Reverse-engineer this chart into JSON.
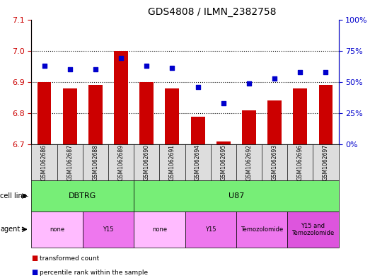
{
  "title": "GDS4808 / ILMN_2382758",
  "samples": [
    "GSM1062686",
    "GSM1062687",
    "GSM1062688",
    "GSM1062689",
    "GSM1062690",
    "GSM1062691",
    "GSM1062694",
    "GSM1062695",
    "GSM1062692",
    "GSM1062693",
    "GSM1062696",
    "GSM1062697"
  ],
  "bar_values": [
    6.9,
    6.88,
    6.89,
    7.0,
    6.9,
    6.88,
    6.79,
    6.71,
    6.81,
    6.84,
    6.88,
    6.89
  ],
  "dot_values": [
    63,
    60,
    60,
    69,
    63,
    61,
    46,
    33,
    49,
    53,
    58,
    58
  ],
  "ylim_left": [
    6.7,
    7.1
  ],
  "ylim_right": [
    0,
    100
  ],
  "yticks_left": [
    6.7,
    6.8,
    6.9,
    7.0,
    7.1
  ],
  "yticks_right": [
    0,
    25,
    50,
    75,
    100
  ],
  "bar_color": "#cc0000",
  "dot_color": "#0000cc",
  "bar_baseline": 6.7,
  "cell_line_labels": [
    "DBTRG",
    "U87"
  ],
  "cell_line_spans": [
    [
      0,
      3
    ],
    [
      4,
      11
    ]
  ],
  "cell_line_color": "#77ee77",
  "agent_groups": [
    {
      "label": "none",
      "start": 0,
      "end": 1,
      "color": "#ffbbff"
    },
    {
      "label": "Y15",
      "start": 2,
      "end": 3,
      "color": "#ee77ee"
    },
    {
      "label": "none",
      "start": 4,
      "end": 5,
      "color": "#ffbbff"
    },
    {
      "label": "Y15",
      "start": 6,
      "end": 7,
      "color": "#ee77ee"
    },
    {
      "label": "Temozolomide",
      "start": 8,
      "end": 9,
      "color": "#ee77ee"
    },
    {
      "label": "Y15 and\nTemozolomide",
      "start": 10,
      "end": 11,
      "color": "#dd55dd"
    }
  ],
  "legend_items": [
    {
      "label": "transformed count",
      "color": "#cc0000"
    },
    {
      "label": "percentile rank within the sample",
      "color": "#0000cc"
    }
  ],
  "bg_color": "#ffffff",
  "tick_label_color_left": "#cc0000",
  "tick_label_color_right": "#0000cc",
  "label_row_bg": "#dddddd",
  "cell_line_row_label": "cell line",
  "agent_row_label": "agent"
}
